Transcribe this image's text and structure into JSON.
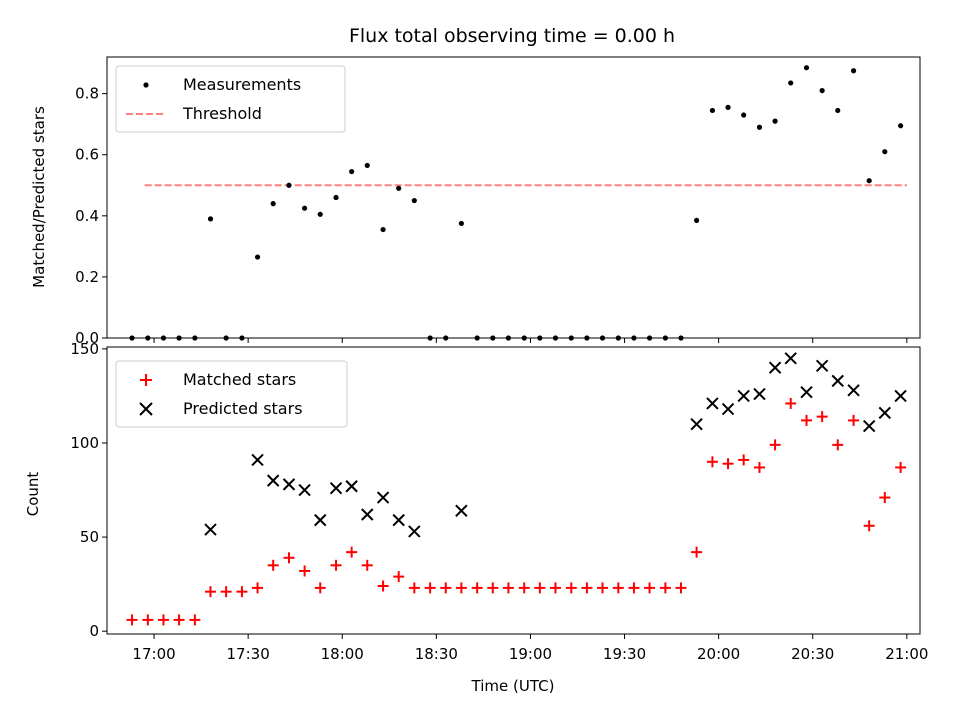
{
  "chart_data": [
    {
      "type": "scatter",
      "title": "Flux total observing time = 0.00 h",
      "xlabel": "",
      "ylabel": "Matched/Predicted stars",
      "xlim": [
        16.75,
        21.07
      ],
      "ylim": [
        0,
        0.92
      ],
      "yticks": [
        0.0,
        0.2,
        0.4,
        0.6,
        0.8
      ],
      "ytick_labels": [
        "0.0",
        "0.2",
        "0.4",
        "0.6",
        "0.8"
      ],
      "legend_position": "top-left",
      "series": [
        {
          "name": "Measurements",
          "marker": "dot",
          "color": "#000000",
          "x": [
            16.883,
            16.967,
            17.05,
            17.133,
            17.217,
            17.3,
            17.383,
            17.467,
            17.55,
            17.633,
            17.717,
            17.8,
            17.883,
            17.967,
            18.05,
            18.133,
            18.217,
            18.3,
            18.383,
            18.467,
            18.55,
            18.633,
            18.717,
            18.8,
            18.883,
            18.967,
            19.05,
            19.133,
            19.217,
            19.3,
            19.383,
            19.467,
            19.55,
            19.633,
            19.717,
            19.8,
            19.883,
            19.967,
            20.05,
            20.133,
            20.217,
            20.3,
            20.383,
            20.467,
            20.55,
            20.633,
            20.717,
            20.8,
            20.883,
            20.967
          ],
          "y": [
            0.0,
            0.0,
            0.0,
            0.0,
            0.0,
            0.39,
            0.0,
            0.0,
            0.265,
            0.44,
            0.5,
            0.425,
            0.405,
            0.46,
            0.545,
            0.565,
            0.355,
            0.49,
            0.45,
            0.0,
            0.0,
            0.375,
            0.0,
            0.0,
            0.0,
            0.0,
            0.0,
            0.0,
            0.0,
            0.0,
            0.0,
            0.0,
            0.0,
            0.0,
            0.0,
            0.0,
            0.385,
            0.745,
            0.755,
            0.73,
            0.69,
            0.71,
            0.835,
            0.885,
            0.81,
            0.745,
            0.875,
            0.515,
            0.61,
            0.695
          ]
        },
        {
          "name": "Threshold",
          "marker": "dashed-line",
          "color": "#ff7f7f",
          "x": [
            16.95,
            21.0
          ],
          "y": [
            0.5,
            0.5
          ]
        }
      ]
    },
    {
      "type": "scatter",
      "title": "",
      "xlabel": "Time (UTC)",
      "ylabel": "Count",
      "xlim": [
        16.75,
        21.07
      ],
      "ylim": [
        -1.5,
        151
      ],
      "yticks": [
        0,
        50,
        100,
        150
      ],
      "ytick_labels": [
        "0",
        "50",
        "100",
        "150"
      ],
      "xticks": [
        17.0,
        17.5,
        18.0,
        18.5,
        19.0,
        19.5,
        20.0,
        20.5,
        21.0
      ],
      "xtick_labels": [
        "17:00",
        "17:30",
        "18:00",
        "18:30",
        "19:00",
        "19:30",
        "20:00",
        "20:30",
        "21:00"
      ],
      "legend_position": "top-left",
      "series": [
        {
          "name": "Matched stars",
          "marker": "plus",
          "color": "#ff0000",
          "x": [
            16.883,
            16.967,
            17.05,
            17.133,
            17.217,
            17.3,
            17.383,
            17.467,
            17.55,
            17.633,
            17.717,
            17.8,
            17.883,
            17.967,
            18.05,
            18.133,
            18.217,
            18.3,
            18.383,
            18.467,
            18.55,
            18.633,
            18.717,
            18.8,
            18.883,
            18.967,
            19.05,
            19.133,
            19.217,
            19.3,
            19.383,
            19.467,
            19.55,
            19.633,
            19.717,
            19.8,
            19.883,
            19.967,
            20.05,
            20.133,
            20.217,
            20.3,
            20.383,
            20.467,
            20.55,
            20.633,
            20.717,
            20.8,
            20.883,
            20.967
          ],
          "y": [
            6,
            6,
            6,
            6,
            6,
            21,
            21,
            21,
            23,
            35,
            39,
            32,
            23,
            35,
            42,
            35,
            24,
            29,
            23,
            23,
            23,
            23,
            23,
            23,
            23,
            23,
            23,
            23,
            23,
            23,
            23,
            23,
            23,
            23,
            23,
            23,
            42,
            90,
            89,
            91,
            87,
            99,
            121,
            112,
            114,
            99,
            112,
            56,
            71,
            87
          ]
        },
        {
          "name": "Predicted stars",
          "marker": "x",
          "color": "#000000",
          "x": [
            17.3,
            17.55,
            17.633,
            17.717,
            17.8,
            17.883,
            17.967,
            18.05,
            18.133,
            18.217,
            18.3,
            18.383,
            18.633,
            19.883,
            19.967,
            20.05,
            20.133,
            20.217,
            20.3,
            20.383,
            20.467,
            20.55,
            20.633,
            20.717,
            20.8,
            20.883,
            20.967
          ],
          "y": [
            54,
            91,
            80,
            78,
            75,
            59,
            76,
            77,
            62,
            71,
            59,
            53,
            64,
            110,
            121,
            118,
            125,
            126,
            140,
            145,
            127,
            141,
            133,
            128,
            109,
            116,
            125
          ]
        }
      ]
    }
  ]
}
